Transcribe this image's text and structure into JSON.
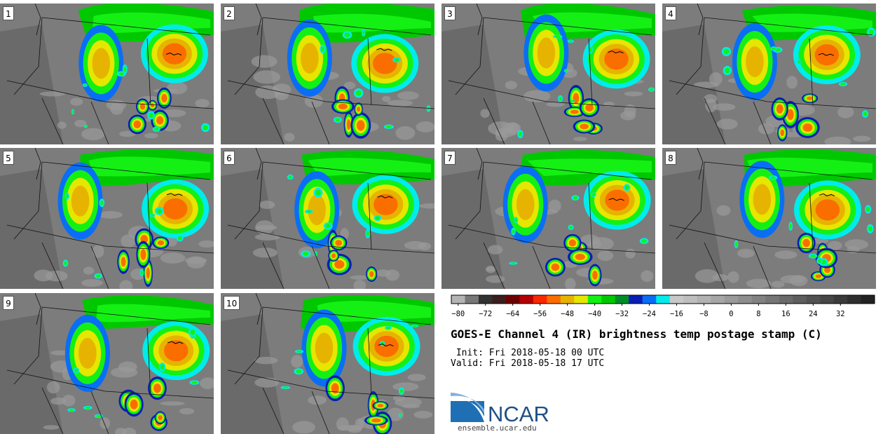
{
  "panels": [
    "1",
    "2",
    "3",
    "4",
    "5",
    "6",
    "7",
    "8",
    "9",
    "10"
  ],
  "colorbar": {
    "bins": [
      {
        "value": -80,
        "color": "#b4b4b4"
      },
      {
        "value": -76,
        "color": "#787878"
      },
      {
        "value": -72,
        "color": "#323232"
      },
      {
        "value": -68,
        "color": "#3c1e1e"
      },
      {
        "value": -64,
        "color": "#6e0000"
      },
      {
        "value": -60,
        "color": "#b40000"
      },
      {
        "value": -56,
        "color": "#fa2800"
      },
      {
        "value": -52,
        "color": "#fa6e00"
      },
      {
        "value": -48,
        "color": "#e6b400"
      },
      {
        "value": -44,
        "color": "#e6e600"
      },
      {
        "value": -40,
        "color": "#14f014"
      },
      {
        "value": -36,
        "color": "#00c800"
      },
      {
        "value": -32,
        "color": "#008c28"
      },
      {
        "value": -28,
        "color": "#0a1eb4"
      },
      {
        "value": -24,
        "color": "#0a6ef5"
      },
      {
        "value": -20,
        "color": "#00ebeb"
      },
      {
        "value": -16,
        "color": "#c8c8c8"
      },
      {
        "value": -12,
        "color": "#bebebe"
      },
      {
        "value": -8,
        "color": "#b2b2b2"
      },
      {
        "value": -4,
        "color": "#a6a6a6"
      },
      {
        "value": 0,
        "color": "#9a9a9a"
      },
      {
        "value": 4,
        "color": "#8e8e8e"
      },
      {
        "value": 8,
        "color": "#828282"
      },
      {
        "value": 12,
        "color": "#767676"
      },
      {
        "value": 16,
        "color": "#6a6a6a"
      },
      {
        "value": 20,
        "color": "#5e5e5e"
      },
      {
        "value": 24,
        "color": "#525252"
      },
      {
        "value": 28,
        "color": "#464646"
      },
      {
        "value": 32,
        "color": "#3a3a3a"
      },
      {
        "value": 36,
        "color": "#2e2e2e"
      },
      {
        "value": 40,
        "color": "#222222"
      }
    ],
    "tick_labels": [
      "−80",
      "−72",
      "−64",
      "−56",
      "−48",
      "−40",
      "−32",
      "−24",
      "−16",
      "−8",
      "0",
      "8",
      "16",
      "24",
      "32"
    ],
    "tick_values": [
      -80,
      -72,
      -64,
      -56,
      -48,
      -40,
      -32,
      -24,
      -16,
      -8,
      0,
      8,
      16,
      24,
      32
    ]
  },
  "title": "GOES-E Channel 4 (IR) brightness temp postage stamp (C)",
  "init_line": " Init: Fri 2018-05-18 00 UTC",
  "valid_line": "Valid: Fri 2018-05-18 17 UTC",
  "logo": {
    "text": "NCAR",
    "url": "ensemble.ucar.edu",
    "brand_color": "#1f4f86",
    "swoosh_color": "#2f7fc4"
  }
}
